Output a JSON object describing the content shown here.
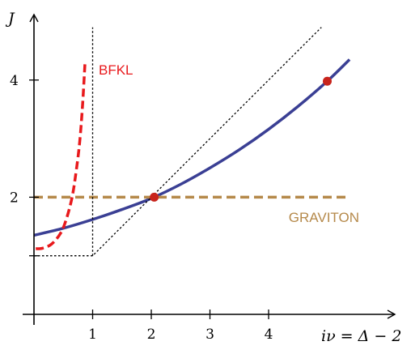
{
  "chart_data": {
    "type": "line",
    "title": "",
    "xlabel": "iν = Δ − 2",
    "ylabel": "J",
    "xlim": [
      -0.02,
      6.2
    ],
    "ylim": [
      -0.1,
      6.0
    ],
    "x_ticks": [
      {
        "value": 1,
        "label": "1"
      },
      {
        "value": 2,
        "label": "2"
      },
      {
        "value": 3,
        "label": "3"
      },
      {
        "value": 4,
        "label": "4"
      }
    ],
    "y_ticks": [
      {
        "value": 2,
        "label": "2"
      },
      {
        "value": 4,
        "label": "4"
      }
    ],
    "y_minor_ticks": [
      1
    ],
    "grid": false,
    "series": [
      {
        "name": "",
        "style": "solid",
        "color": "#3a3f94",
        "x": [
          0.0,
          0.5,
          1.0,
          1.5,
          2.0,
          2.5,
          3.0,
          3.5,
          4.0,
          4.5,
          5.0,
          5.38
        ],
        "y": [
          1.35,
          1.47,
          1.62,
          1.79,
          1.98,
          2.22,
          2.5,
          2.81,
          3.16,
          3.55,
          3.98,
          4.35
        ]
      },
      {
        "name": "BFKL",
        "style": "dashed",
        "color": "#e8191c",
        "x": [
          0.03,
          0.15,
          0.3,
          0.45,
          0.55,
          0.65,
          0.72,
          0.78,
          0.83,
          0.87
        ],
        "y": [
          1.12,
          1.13,
          1.2,
          1.38,
          1.62,
          2.0,
          2.45,
          2.95,
          3.6,
          4.3
        ]
      },
      {
        "name": "GRAVITON",
        "style": "dashed",
        "color": "#b5894a",
        "x": [
          0.0,
          5.38
        ],
        "y": [
          2.0,
          2.0
        ]
      },
      {
        "name": "",
        "style": "dotted",
        "color": "#000000",
        "x": [
          0.0,
          1.0,
          4.9
        ],
        "y": [
          1.0,
          1.0,
          4.9
        ]
      },
      {
        "name": "",
        "style": "dotted",
        "color": "#000000",
        "x": [
          1.0,
          1.0
        ],
        "y": [
          1.0,
          4.9
        ]
      }
    ],
    "points": [
      {
        "x": 2.05,
        "y": 2.0,
        "color": "#c8241c"
      },
      {
        "x": 5.0,
        "y": 3.98,
        "color": "#c8241c"
      }
    ]
  }
}
